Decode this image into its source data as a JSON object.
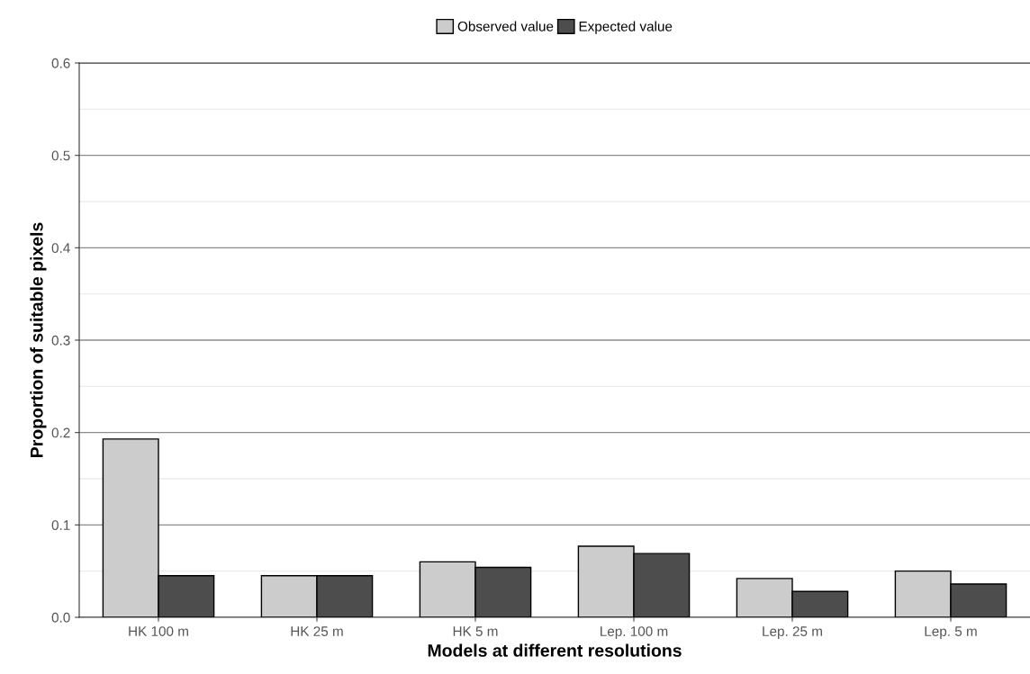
{
  "chart_data": {
    "type": "bar",
    "xlabel": "Models at different resolutions",
    "ylabel": "Proportion of suitable pixels",
    "categories": [
      "HK 100 m",
      "HK 25 m",
      "HK 5 m",
      "Lep. 100 m",
      "Lep. 25 m",
      "Lep. 5 m"
    ],
    "series": [
      {
        "name": "Observed value",
        "color": "#cccccc",
        "values": [
          0.193,
          0.045,
          0.06,
          0.077,
          0.042,
          0.05
        ]
      },
      {
        "name": "Expected value",
        "color": "#4d4d4d",
        "values": [
          0.045,
          0.045,
          0.054,
          0.069,
          0.028,
          0.036
        ]
      }
    ],
    "ylim": [
      0,
      0.6
    ],
    "yticks": [
      {
        "value": 0,
        "label": "0.0"
      },
      0.1,
      0.2,
      0.3,
      0.4,
      0.5,
      0.6
    ],
    "grid": "y",
    "legend": "top"
  }
}
